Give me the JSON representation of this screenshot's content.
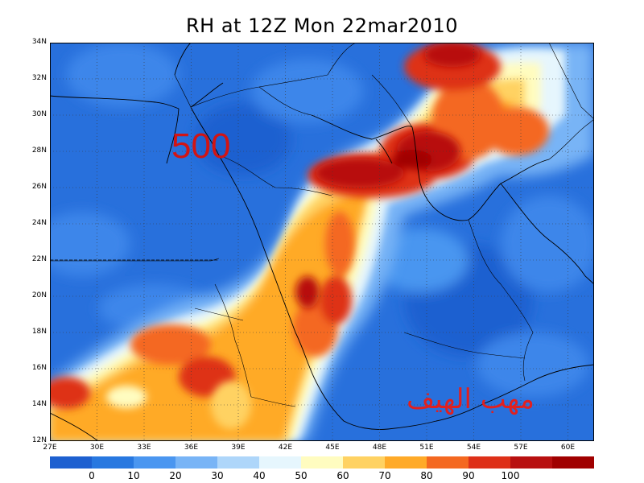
{
  "title": "RH at 12Z Mon 22mar2010",
  "map": {
    "lat_labels": [
      "34N",
      "32N",
      "30N",
      "28N",
      "26N",
      "24N",
      "22N",
      "20N",
      "18N",
      "16N",
      "14N",
      "12N"
    ],
    "lon_labels": [
      "27E",
      "30E",
      "33E",
      "36E",
      "39E",
      "42E",
      "45E",
      "48E",
      "51E",
      "54E",
      "57E",
      "60E"
    ],
    "overlay_level": "500",
    "overlay_arabic": "مهب الهيف"
  },
  "colorbar": {
    "colors": [
      "#1e60d0",
      "#2878e0",
      "#4a96f0",
      "#78b4f6",
      "#aed6fa",
      "#e6f6fd",
      "#fffcc0",
      "#ffd262",
      "#ffaa28",
      "#f46820",
      "#de3018",
      "#b81010",
      "#a00000"
    ],
    "labels": [
      "0",
      "10",
      "20",
      "30",
      "40",
      "50",
      "60",
      "70",
      "80",
      "90",
      "100"
    ]
  },
  "chart_data": {
    "type": "heatmap",
    "title": "RH at 12Z Mon 22mar2010",
    "variable": "RH",
    "level": "500",
    "x_ticks": [
      "27E",
      "30E",
      "33E",
      "36E",
      "39E",
      "42E",
      "45E",
      "48E",
      "51E",
      "54E",
      "57E",
      "60E"
    ],
    "y_ticks": [
      "12N",
      "14N",
      "16N",
      "18N",
      "20N",
      "22N",
      "24N",
      "26N",
      "28N",
      "30N",
      "32N",
      "34N"
    ],
    "x_range": [
      27,
      63
    ],
    "y_range": [
      12,
      34
    ],
    "color_levels": [
      0,
      10,
      20,
      30,
      40,
      50,
      60,
      70,
      80,
      90,
      100
    ],
    "grid": true
  }
}
